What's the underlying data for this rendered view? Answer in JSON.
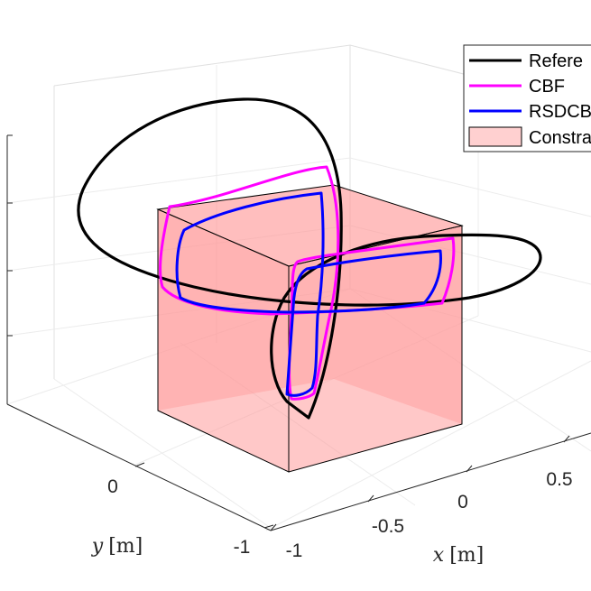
{
  "chart_data": {
    "type": "line3d",
    "xlabel_var": "x",
    "xlabel_unit": "[m]",
    "ylabel_var": "y",
    "ylabel_unit": "[m]",
    "x_ticks": [
      "-1",
      "-0.5",
      "0",
      "0.5"
    ],
    "y_ticks": [
      "-1",
      "0"
    ],
    "grid": true,
    "legend_position": "top-right",
    "legend": [
      "Refere",
      "CBF",
      "RSDCB",
      "Constra"
    ],
    "colors": {
      "reference": "#000000",
      "cbf": "#ff00ff",
      "rsdcbf": "#0000ff",
      "constraint_face": "#ff9a9a",
      "constraint_edge": "#000000"
    },
    "series": [
      {
        "key": "reference",
        "legend": "Refere",
        "style": "line"
      },
      {
        "key": "cbf",
        "legend": "CBF",
        "style": "line"
      },
      {
        "key": "rsdcbf",
        "legend": "RSDCB",
        "style": "line"
      },
      {
        "key": "constraint",
        "legend": "Constra",
        "style": "patch"
      }
    ]
  }
}
